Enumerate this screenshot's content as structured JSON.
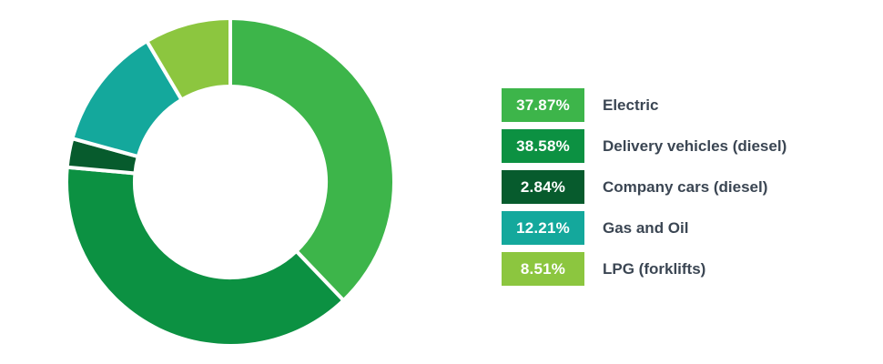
{
  "chart_data": {
    "type": "pie",
    "variant": "donut",
    "title": "",
    "slices": [
      {
        "label": "Electric",
        "value": 37.87,
        "display": "37.87%",
        "color": "#3db54a"
      },
      {
        "label": "Delivery vehicles (diesel)",
        "value": 38.58,
        "display": "38.58%",
        "color": "#0c9142"
      },
      {
        "label": "Company cars (diesel)",
        "value": 2.84,
        "display": "2.84%",
        "color": "#075b2d"
      },
      {
        "label": "Gas and Oil",
        "value": 12.21,
        "display": "12.21%",
        "color": "#14a89c"
      },
      {
        "label": "LPG (forklifts)",
        "value": 8.51,
        "display": "8.51%",
        "color": "#8cc63f"
      }
    ],
    "legend_position": "right"
  }
}
